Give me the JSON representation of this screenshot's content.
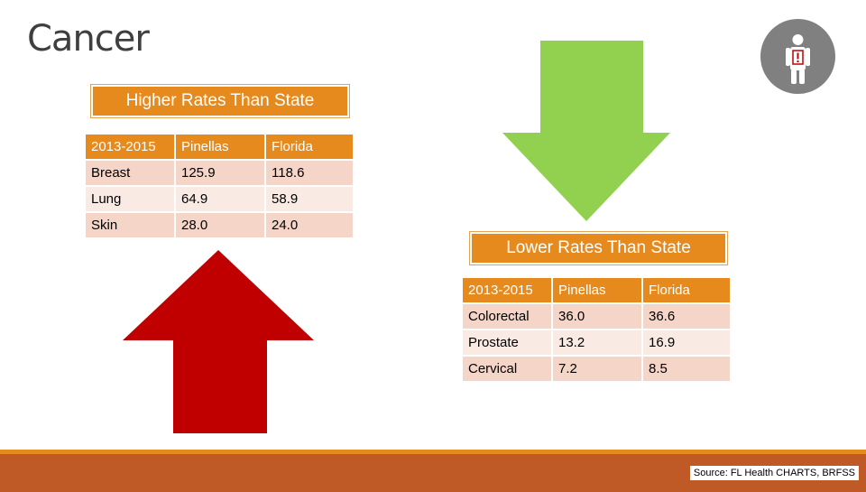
{
  "page": {
    "title": "Cancer"
  },
  "higher": {
    "banner": "Higher Rates Than State",
    "headers": [
      "2013-2015",
      "Pinellas",
      "Florida"
    ],
    "rows": [
      [
        "Breast",
        "125.9",
        "118.6"
      ],
      [
        "Lung",
        "64.9",
        "58.9"
      ],
      [
        "Skin",
        "28.0",
        "24.0"
      ]
    ]
  },
  "lower": {
    "banner": "Lower Rates Than State",
    "headers": [
      "2013-2015",
      "Pinellas",
      "Florida"
    ],
    "rows": [
      [
        "Colorectal",
        "36.0",
        "36.6"
      ],
      [
        "Prostate",
        "13.2",
        "16.9"
      ],
      [
        "Cervical",
        "7.2",
        "8.5"
      ]
    ]
  },
  "footer": {
    "source": "Source: FL Health CHARTS, BRFSS"
  },
  "colors": {
    "accent": "#e68a1e",
    "arrow_up": "#c00000",
    "arrow_down": "#92d050",
    "footer": "#bf5a27",
    "badge": "#808080"
  },
  "icons": {
    "badge": "person-alert-icon",
    "up": "arrow-up-icon",
    "down": "arrow-down-icon"
  }
}
